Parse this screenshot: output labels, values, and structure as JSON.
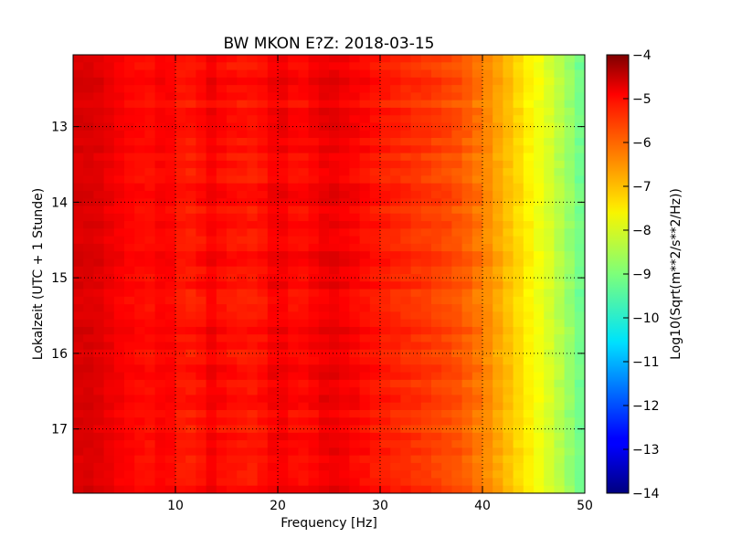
{
  "chart_data": {
    "type": "heatmap",
    "title": "BW MKON E?Z: 2018-03-15",
    "xlabel": "Frequency [Hz]",
    "ylabel": "Lokalzeit (UTC + 1 Stunde)",
    "xlim": [
      0,
      50
    ],
    "ylim": [
      17.85,
      12.05
    ],
    "x_ticks": [
      10,
      20,
      30,
      40,
      50
    ],
    "y_ticks": [
      13,
      14,
      15,
      16,
      17
    ],
    "grid": true,
    "colormap": "jet",
    "colorbar": {
      "label": "Log10(Sqrt(m**2/s**2/Hz))",
      "range": [
        -14,
        -4
      ],
      "ticks": [
        -4,
        -5,
        -6,
        -7,
        -8,
        -9,
        -10,
        -11,
        -12,
        -13,
        -14
      ]
    },
    "spectrum_profile": {
      "frequency_hz": [
        0,
        2,
        5,
        8,
        9,
        10,
        12,
        13.5,
        15,
        18,
        20,
        22,
        25,
        27,
        30,
        33,
        36,
        38,
        40,
        42,
        44,
        46,
        48,
        50
      ],
      "level_log10": [
        -4.9,
        -4.9,
        -5.25,
        -5.4,
        -5.1,
        -5.45,
        -5.5,
        -5.2,
        -5.4,
        -5.5,
        -5.1,
        -5.4,
        -5.05,
        -5.2,
        -5.5,
        -5.7,
        -5.9,
        -6.1,
        -6.5,
        -7.0,
        -7.5,
        -8.0,
        -8.6,
        -9.3
      ]
    }
  }
}
